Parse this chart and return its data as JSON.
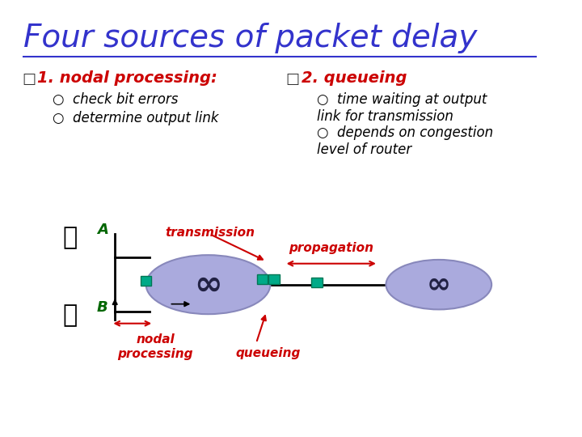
{
  "background_color": "#ffffff",
  "title": "Four sources of packet delay",
  "title_color": "#3333cc",
  "title_fontsize": 28,
  "title_underline": true,
  "section1_header": "1. nodal processing:",
  "section1_color": "#cc0000",
  "section1_bullet1": "check bit errors",
  "section1_bullet2": "determine output link",
  "section2_header": "2. queueing",
  "section2_color": "#cc0000",
  "section2_bullet1": "time waiting at output\nlink for transmission",
  "section2_bullet2": "depends on congestion\nlevel of router",
  "bullet_color": "#000000",
  "diagram_label_transmission": "transmission",
  "diagram_label_propagation": "propagation",
  "diagram_label_nodal": "nodal\nprocessing",
  "diagram_label_queueing": "queueing",
  "diagram_label_A": "A",
  "diagram_label_B": "B",
  "diagram_label_color": "#cc0000",
  "router_fill": "#aaaadd",
  "router_outline": "#8888bb",
  "packet_fill": "#00aa88",
  "line_color": "#000000",
  "node_label_color": "#006600"
}
